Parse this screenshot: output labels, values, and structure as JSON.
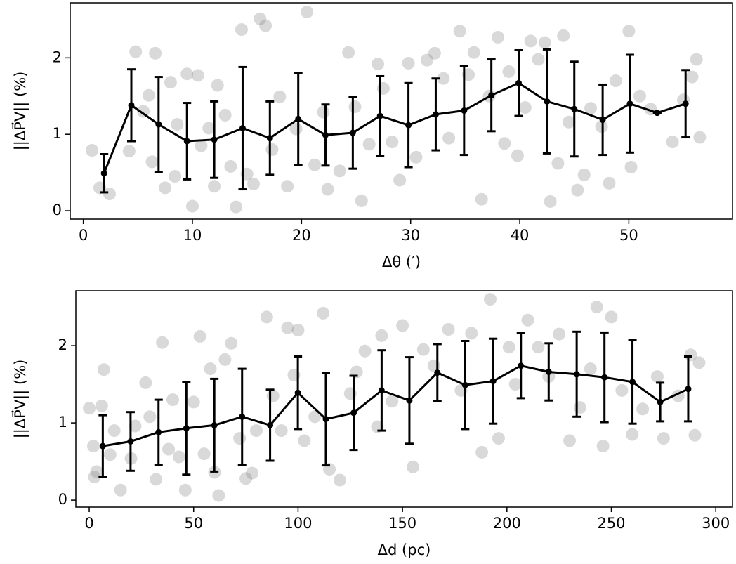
{
  "chart_data": [
    {
      "type": "scatter",
      "xlabel": "Δθ (′)",
      "ylabel": "||ΔP⃗V|| (%)",
      "xlim": [
        -1.2,
        59.5
      ],
      "ylim": [
        -0.11,
        2.72
      ],
      "xticks": [
        0,
        10,
        20,
        30,
        40,
        50
      ],
      "yticks": [
        0,
        1,
        2
      ],
      "series": [
        {
          "type": "scatter",
          "color": "#808080",
          "x": [
            0.8,
            1.5,
            2.4,
            4.2,
            4.8,
            5.5,
            6,
            6.3,
            6.6,
            7.5,
            8,
            8.4,
            8.6,
            9.5,
            10,
            10.5,
            10.8,
            11.5,
            12,
            12.3,
            13,
            13.5,
            14,
            14.5,
            15,
            15.6,
            16.2,
            16.7,
            17.3,
            18,
            18.7,
            19.5,
            20.5,
            21.2,
            22,
            22.4,
            23.5,
            24.3,
            24.9,
            25.5,
            26.2,
            27,
            27.5,
            28.3,
            29,
            29.8,
            30.5,
            31.5,
            32.2,
            33,
            33.5,
            34.5,
            35.3,
            35.8,
            36.5,
            37.2,
            38,
            38.6,
            39,
            39.8,
            40.5,
            41,
            41.7,
            42.3,
            42.8,
            43.5,
            44,
            44.5,
            45.3,
            45.9,
            46.5,
            47.5,
            48.2,
            48.8,
            50,
            50.2,
            51,
            52,
            54,
            55,
            55.8,
            56.5,
            56.2
          ],
          "values": [
            0.79,
            0.3,
            0.22,
            0.78,
            2.08,
            1.3,
            1.51,
            0.64,
            2.06,
            0.3,
            1.68,
            0.45,
            1.13,
            1.79,
            0.06,
            1.77,
            0.85,
            1.08,
            0.32,
            1.64,
            1.25,
            0.58,
            0.05,
            2.37,
            0.48,
            0.35,
            2.51,
            2.42,
            0.8,
            1.49,
            0.32,
            1.07,
            2.6,
            0.6,
            1.29,
            0.28,
            0.52,
            2.07,
            1.36,
            0.13,
            0.87,
            1.92,
            1.6,
            0.9,
            0.4,
            1.93,
            0.7,
            1.97,
            2.06,
            1.73,
            0.95,
            2.35,
            1.78,
            2.07,
            0.15,
            1.5,
            2.27,
            0.88,
            1.82,
            0.72,
            1.35,
            2.22,
            1.98,
            2.2,
            0.12,
            0.62,
            2.29,
            1.16,
            0.27,
            0.47,
            1.34,
            1.1,
            0.36,
            1.7,
            2.35,
            0.57,
            1.5,
            1.33,
            0.9,
            1.45,
            1.75,
            0.96,
            1.98
          ]
        },
        {
          "type": "line",
          "color": "#000000",
          "x": [
            1.9,
            4.4,
            6.9,
            9.5,
            12,
            14.6,
            17.1,
            19.7,
            22.2,
            24.7,
            27.2,
            29.8,
            32.3,
            34.9,
            37.4,
            39.9,
            42.5,
            45,
            47.6,
            50.1,
            52.6,
            55.2
          ],
          "values": [
            0.49,
            1.38,
            1.13,
            0.91,
            0.93,
            1.08,
            0.95,
            1.2,
            0.99,
            1.02,
            1.24,
            1.12,
            1.26,
            1.31,
            1.51,
            1.67,
            1.43,
            1.33,
            1.19,
            1.4,
            1.28,
            1.4
          ],
          "errors": [
            0.25,
            0.47,
            0.62,
            0.5,
            0.5,
            0.8,
            0.48,
            0.6,
            0.4,
            0.47,
            0.52,
            0.55,
            0.47,
            0.58,
            0.47,
            0.43,
            0.68,
            0.62,
            0.46,
            0.64,
            0,
            0.44
          ]
        }
      ]
    },
    {
      "type": "scatter",
      "xlabel": "Δd (pc)",
      "ylabel": "||ΔP⃗V|| (%)",
      "xlim": [
        -6.4,
        308
      ],
      "ylim": [
        -0.09,
        2.71
      ],
      "xticks": [
        0,
        50,
        100,
        150,
        200,
        250,
        300
      ],
      "yticks": [
        0,
        1,
        2
      ],
      "series": [
        {
          "type": "scatter",
          "color": "#808080",
          "x": [
            0,
            2,
            2.5,
            3.5,
            6,
            7,
            10,
            12,
            15,
            20,
            22,
            27,
            29,
            32,
            35,
            38,
            40,
            43,
            46,
            50,
            53,
            55,
            58,
            60,
            62,
            65,
            68,
            72,
            75,
            78,
            80,
            85,
            88,
            92,
            95,
            98,
            100,
            103,
            108,
            112,
            115,
            120,
            125,
            128,
            132,
            138,
            140,
            145,
            150,
            155,
            160,
            165,
            172,
            178,
            183,
            188,
            192,
            196,
            201,
            204,
            210,
            215,
            220,
            225,
            230,
            235,
            240,
            243,
            246,
            250,
            255,
            260,
            265,
            272,
            275,
            282,
            288,
            290,
            292
          ],
          "values": [
            1.19,
            0.7,
            0.3,
            0.37,
            1.22,
            1.69,
            0.59,
            0.9,
            0.13,
            0.54,
            0.96,
            1.52,
            1.08,
            0.27,
            2.04,
            0.66,
            1.3,
            0.56,
            0.13,
            1.27,
            2.12,
            0.6,
            1.7,
            0.36,
            0.06,
            1.82,
            2.03,
            0.8,
            0.28,
            0.35,
            0.9,
            2.37,
            1.35,
            0.9,
            2.23,
            1.62,
            2.2,
            0.77,
            1.08,
            2.42,
            0.4,
            0.26,
            1.38,
            1.66,
            1.93,
            0.95,
            2.13,
            1.28,
            2.26,
            0.43,
            1.95,
            1.74,
            2.21,
            1.42,
            2.16,
            0.62,
            2.6,
            0.8,
            1.98,
            1.5,
            2.33,
            1.98,
            1.6,
            2.15,
            0.77,
            1.2,
            1.7,
            2.5,
            0.7,
            2.37,
            1.42,
            0.85,
            1.18,
            1.6,
            0.8,
            1.35,
            1.88,
            0.84,
            1.78
          ]
        },
        {
          "type": "line",
          "color": "#000000",
          "x": [
            6.5,
            19.8,
            33.2,
            46.5,
            59.9,
            73.2,
            86.6,
            99.9,
            113.3,
            126.6,
            140,
            153.3,
            166.7,
            180,
            193.4,
            206.7,
            220,
            233.4,
            246.7,
            260.1,
            273.4,
            286.8
          ],
          "values": [
            0.7,
            0.76,
            0.88,
            0.93,
            0.97,
            1.08,
            0.97,
            1.39,
            1.05,
            1.13,
            1.42,
            1.29,
            1.65,
            1.49,
            1.54,
            1.74,
            1.66,
            1.63,
            1.59,
            1.53,
            1.27,
            1.44
          ],
          "errors": [
            0.4,
            0.38,
            0.42,
            0.6,
            0.6,
            0.62,
            0.46,
            0.47,
            0.6,
            0.48,
            0.52,
            0.56,
            0.37,
            0.57,
            0.55,
            0.42,
            0.37,
            0.55,
            0.58,
            0.54,
            0.25,
            0.42
          ]
        }
      ]
    }
  ]
}
